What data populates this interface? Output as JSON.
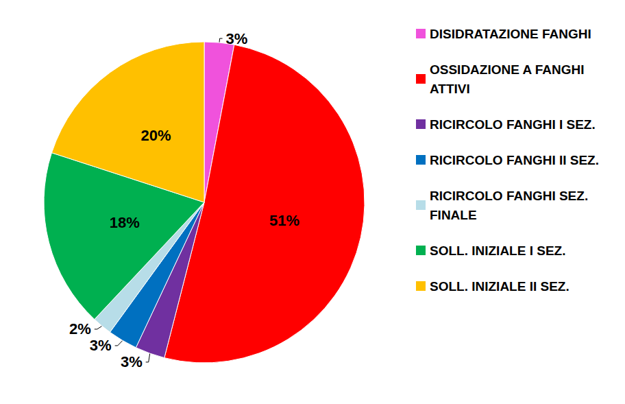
{
  "chart_data": {
    "type": "pie",
    "categories": [
      "DISIDRATAZIONE FANGHI",
      "OSSIDAZIONE A FANGHI ATTIVI",
      "RICIRCOLO FANGHI I SEZ.",
      "RICIRCOLO FANGHI II SEZ.",
      "RICIRCOLO FANGHI SEZ. FINALE",
      "SOLL. INIZIALE I SEZ.",
      "SOLL. INIZIALE II SEZ."
    ],
    "values": [
      3,
      51,
      3,
      3,
      2,
      18,
      20
    ],
    "value_labels": [
      "3%",
      "51%",
      "3%",
      "3%",
      "2%",
      "18%",
      "20%"
    ],
    "colors": [
      "#f052dc",
      "#ff0000",
      "#7030a0",
      "#0070c0",
      "#b7dde8",
      "#00b050",
      "#ffc000"
    ],
    "data_labels": true,
    "legend": "right"
  }
}
